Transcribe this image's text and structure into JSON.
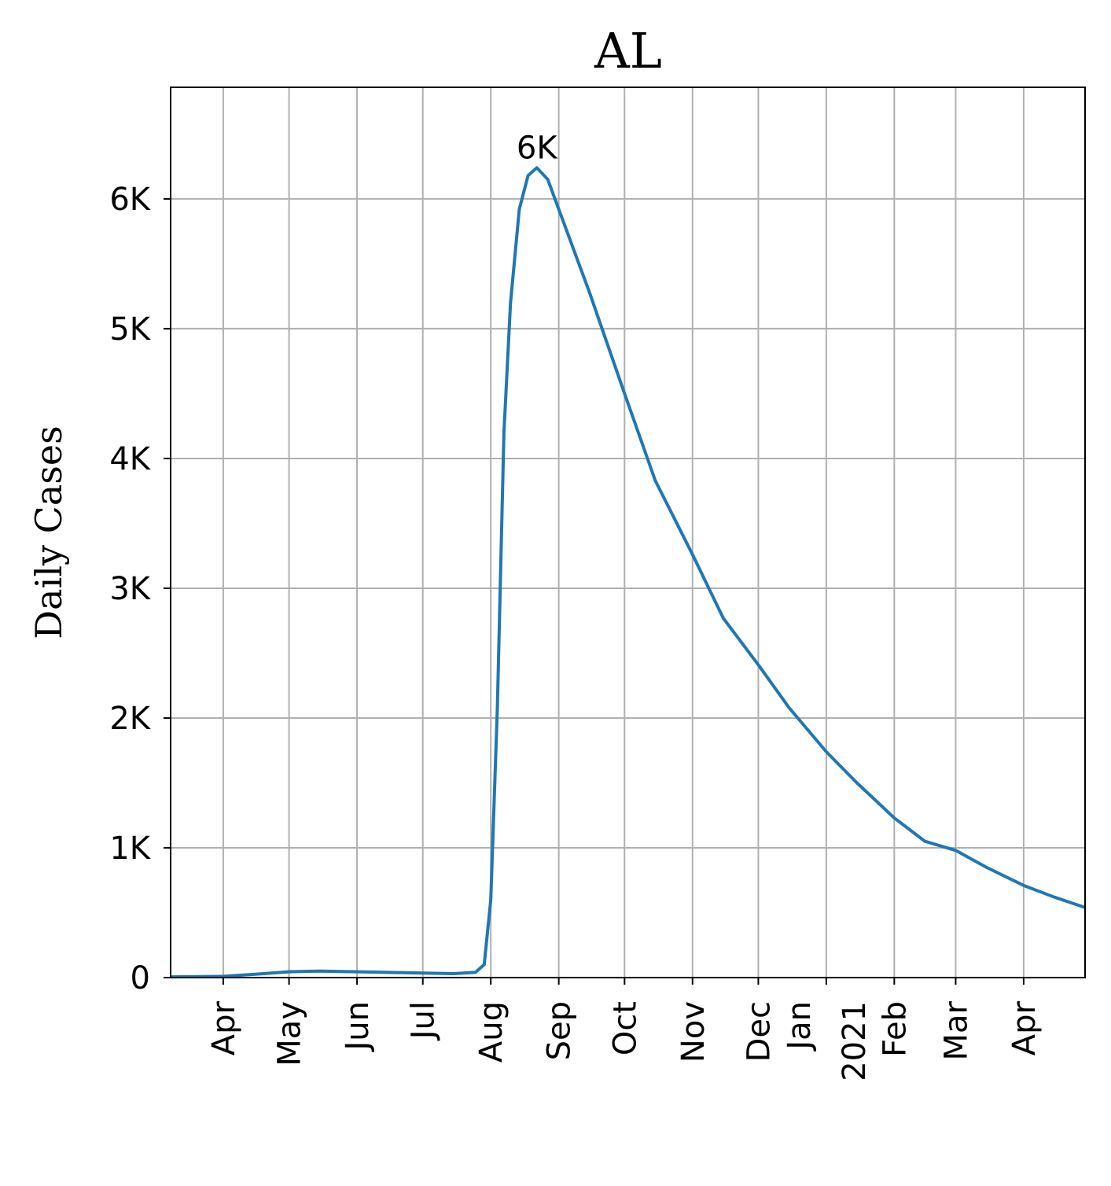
{
  "chart_data": {
    "type": "line",
    "title": "AL",
    "y_label": "Daily Cases",
    "x": [
      "2020-03-08",
      "2020-04-01",
      "2020-04-15",
      "2020-05-01",
      "2020-05-15",
      "2020-06-01",
      "2020-06-15",
      "2020-07-01",
      "2020-07-15",
      "2020-07-25",
      "2020-07-29",
      "2020-08-01",
      "2020-08-04",
      "2020-08-07",
      "2020-08-10",
      "2020-08-14",
      "2020-08-18",
      "2020-08-22",
      "2020-08-27",
      "2020-09-01",
      "2020-09-15",
      "2020-10-01",
      "2020-10-15",
      "2020-11-01",
      "2020-11-15",
      "2020-12-01",
      "2020-12-15",
      "2021-01-01",
      "2021-01-15",
      "2021-02-01",
      "2021-02-15",
      "2021-03-01",
      "2021-03-15",
      "2021-04-01",
      "2021-04-15",
      "2021-04-29"
    ],
    "values": [
      5,
      10,
      25,
      45,
      50,
      45,
      40,
      35,
      30,
      40,
      100,
      600,
      2080,
      4200,
      5200,
      5920,
      6180,
      6240,
      6150,
      5920,
      5280,
      4500,
      3830,
      3260,
      2770,
      2410,
      2080,
      1740,
      1500,
      1230,
      1050,
      980,
      850,
      710,
      620,
      540
    ],
    "color": "#1f77b4",
    "annotations": [
      {
        "x": "2020-08-22",
        "y": 6240,
        "text": "6K"
      }
    ],
    "xlim": [
      "2020-03-08",
      "2021-04-29"
    ],
    "xticks": [
      {
        "value": "2020-04-01",
        "label": "Apr"
      },
      {
        "value": "2020-05-01",
        "label": "May"
      },
      {
        "value": "2020-06-01",
        "label": "Jun"
      },
      {
        "value": "2020-07-01",
        "label": "Jul"
      },
      {
        "value": "2020-08-01",
        "label": "Aug"
      },
      {
        "value": "2020-09-01",
        "label": "Sep"
      },
      {
        "value": "2020-10-01",
        "label": "Oct"
      },
      {
        "value": "2020-11-01",
        "label": "Nov"
      },
      {
        "value": "2020-12-01",
        "label": "Dec"
      },
      {
        "value": "2021-01-01",
        "label": "Jan\n2021"
      },
      {
        "value": "2021-02-01",
        "label": "Feb"
      },
      {
        "value": "2021-03-01",
        "label": "Mar"
      },
      {
        "value": "2021-04-01",
        "label": "Apr"
      }
    ],
    "ylim": [
      0,
      6860
    ],
    "yticks": [
      0,
      {
        "value": 1000,
        "label": "1K"
      },
      {
        "value": 2000,
        "label": "2K"
      },
      {
        "value": 3000,
        "label": "3K"
      },
      {
        "value": 4000,
        "label": "4K"
      },
      {
        "value": 5000,
        "label": "5K"
      },
      {
        "value": 6000,
        "label": "6K"
      }
    ],
    "grid": true
  }
}
